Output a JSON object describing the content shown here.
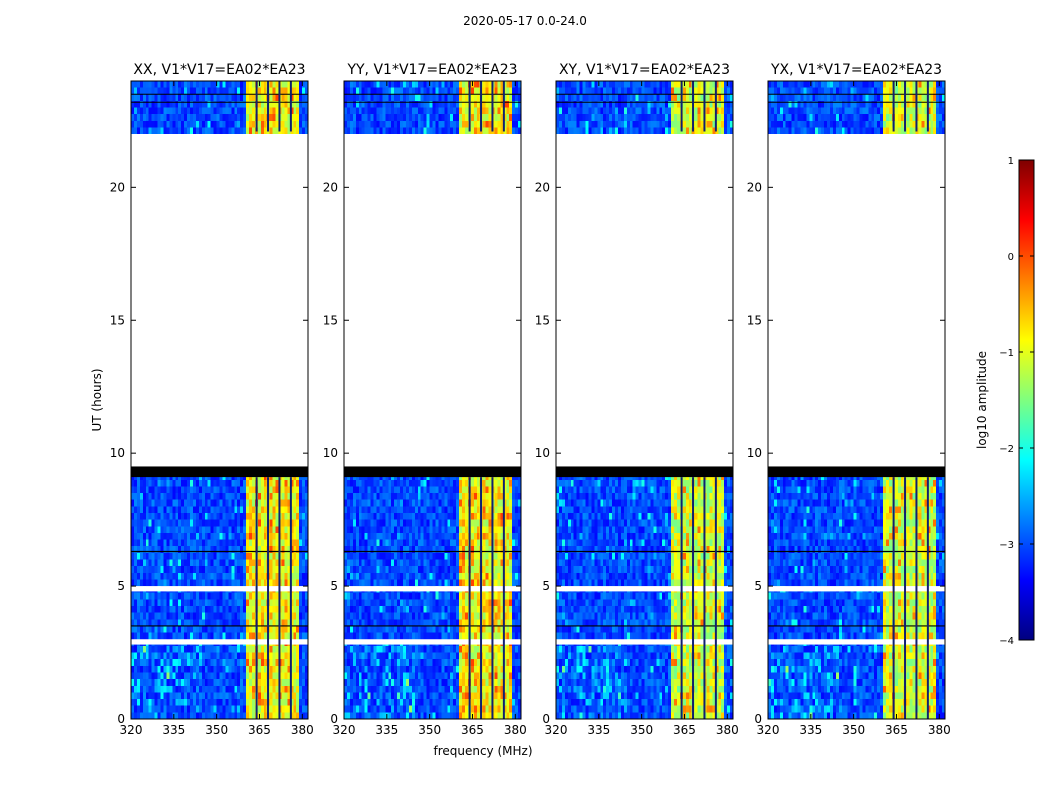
{
  "suptitle": "2020-05-17 0.0-24.0",
  "chart_data": {
    "type": "heatmap",
    "x_label": "frequency (MHz)",
    "y_label": "UT (hours)",
    "xlim": [
      320,
      382
    ],
    "ylim": [
      0,
      24
    ],
    "x_ticks": [
      320,
      335,
      350,
      365,
      380
    ],
    "y_ticks": [
      0,
      5,
      10,
      15,
      20
    ],
    "panels": [
      {
        "title": "XX, V1*V17=EA02*EA23",
        "polarization": "XX"
      },
      {
        "title": "YY, V1*V17=EA02*EA23",
        "polarization": "YY"
      },
      {
        "title": "XY, V1*V17=EA02*EA23",
        "polarization": "XY"
      },
      {
        "title": "YX, V1*V17=EA02*EA23",
        "polarization": "YX"
      }
    ],
    "data_coverage_hours": [
      [
        0,
        9.4
      ],
      [
        22.1,
        24
      ]
    ],
    "no_data_hours": [
      [
        9.4,
        22.1
      ]
    ],
    "flagged_rows_hours": [
      [
        9.1,
        9.5
      ],
      [
        2.8,
        3.0
      ],
      [
        4.8,
        5.0
      ]
    ],
    "bright_band_mhz": [
      360,
      379
    ],
    "band_dividers_mhz": [
      364,
      368,
      372,
      376
    ],
    "colorbar": {
      "label": "log10 amplitude",
      "range": [
        -4,
        1
      ],
      "ticks": [
        1,
        0,
        -1,
        -2,
        -3,
        -4
      ],
      "tick_labels": [
        "1",
        "0",
        "−1",
        "−2",
        "−3",
        "−4"
      ],
      "colormap": "jet",
      "colors": [
        "#00007f",
        "#0000ff",
        "#007fff",
        "#00ffff",
        "#7fff7f",
        "#ffff00",
        "#ff7f00",
        "#ff0000",
        "#7f0000"
      ]
    }
  }
}
